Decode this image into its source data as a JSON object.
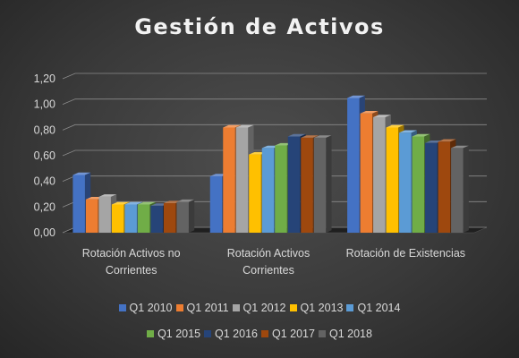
{
  "chart_data": {
    "type": "bar",
    "title": "Gestión de Activos",
    "xlabel": "",
    "ylabel": "",
    "ylim": [
      0,
      1.2
    ],
    "yticks": [
      "0,00",
      "0,20",
      "0,40",
      "0,60",
      "0,80",
      "1,00",
      "1,20"
    ],
    "grid": true,
    "style": "3d-clustered-column",
    "legend_position": "bottom",
    "categories": [
      [
        "Rotación Activos no",
        "Corrientes"
      ],
      [
        "Rotación Activos",
        "Corrientes"
      ],
      [
        "Rotación de Existencias"
      ]
    ],
    "series": [
      {
        "name": "Q1 2010",
        "color": "#4472C4",
        "values": [
          0.45,
          0.44,
          1.05
        ]
      },
      {
        "name": "Q1 2011",
        "color": "#ED7D31",
        "values": [
          0.26,
          0.82,
          0.93
        ]
      },
      {
        "name": "Q1 2012",
        "color": "#A5A5A5",
        "values": [
          0.28,
          0.82,
          0.9
        ]
      },
      {
        "name": "Q1 2013",
        "color": "#FFC000",
        "values": [
          0.22,
          0.61,
          0.82
        ]
      },
      {
        "name": "Q1 2014",
        "color": "#5B9BD5",
        "values": [
          0.22,
          0.66,
          0.78
        ]
      },
      {
        "name": "Q1 2015",
        "color": "#70AD47",
        "values": [
          0.22,
          0.68,
          0.75
        ]
      },
      {
        "name": "Q1 2016",
        "color": "#264478",
        "values": [
          0.21,
          0.75,
          0.7
        ]
      },
      {
        "name": "Q1 2017",
        "color": "#9E480E",
        "values": [
          0.23,
          0.74,
          0.71
        ]
      },
      {
        "name": "Q1 2018",
        "color": "#636363",
        "values": [
          0.24,
          0.74,
          0.66
        ]
      }
    ]
  }
}
